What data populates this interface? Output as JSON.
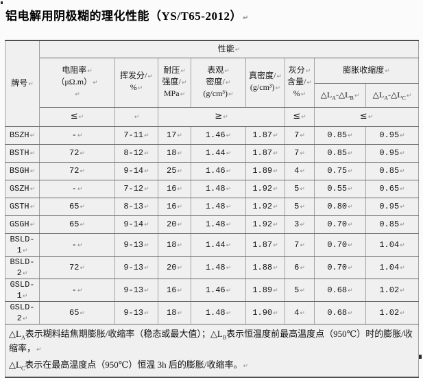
{
  "mark": "↵",
  "title": "铝电解用阴极糊的理化性能（YS/T65-2012）",
  "table": {
    "corner_header": "牌号",
    "perf_header": "性能",
    "expansion_header": "膨胀收缩度",
    "columns": [
      {
        "id": "resistivity",
        "lines": [
          "电阻率",
          "（μΩ.m）",
          ""
        ]
      },
      {
        "id": "volatile",
        "lines": [
          "挥发分/",
          "%"
        ]
      },
      {
        "id": "strength",
        "lines": [
          "耐压",
          "强度/",
          "MPa"
        ]
      },
      {
        "id": "apparent-density",
        "lines": [
          "表观",
          "密度/",
          "(g/cm³)"
        ]
      },
      {
        "id": "true-density",
        "lines": [
          "真密度/",
          "(g/cm³)"
        ]
      },
      {
        "id": "ash",
        "lines": [
          "灰分",
          "含量/",
          "%"
        ]
      }
    ],
    "delta_columns": [
      {
        "id": "dla-dlb",
        "segments": [
          {
            "t": "△L"
          },
          {
            "t": "A",
            "sub": true
          },
          {
            "t": "-△L"
          },
          {
            "t": "B",
            "sub": true
          }
        ]
      },
      {
        "id": "dla-dlc",
        "segments": [
          {
            "t": "△L"
          },
          {
            "t": "A",
            "sub": true
          },
          {
            "t": "-△L"
          },
          {
            "t": "C",
            "sub": true
          }
        ]
      }
    ],
    "limits": {
      "resistivity": "≤",
      "volatile": "",
      "mid": "≥",
      "ash": "≤",
      "expansion": "≤"
    },
    "rows": [
      [
        "BSZH",
        "-",
        "7-11",
        "17",
        "1.46",
        "1.87",
        "7",
        "0.85",
        "0.95"
      ],
      [
        "BSTH",
        "72",
        "8-12",
        "18",
        "1.44",
        "1.87",
        "7",
        "0.85",
        "0.95"
      ],
      [
        "BSGH",
        "72",
        "9-14",
        "25",
        "1.46",
        "1.89",
        "4",
        "0.75",
        "0.85"
      ],
      [
        "GSZH",
        "-",
        "7-12",
        "16",
        "1.48",
        "1.92",
        "5",
        "0.55",
        "0.65"
      ],
      [
        "GSTH",
        "65",
        "8-13",
        "16",
        "1.48",
        "1.92",
        "5",
        "0.80",
        "0.95"
      ],
      [
        "GSGH",
        "65",
        "9-14",
        "20",
        "1.48",
        "1.92",
        "3",
        "0.70",
        "0.85"
      ],
      [
        "BSLD-1",
        "-",
        "9-13",
        "18",
        "1.44",
        "1.87",
        "7",
        "0.70",
        "1.04"
      ],
      [
        "BSLD-2",
        "72",
        "9-13",
        "20",
        "1.48",
        "1.88",
        "6",
        "0.70",
        "1.04"
      ],
      [
        "GSLD-1",
        "-",
        "9-13",
        "16",
        "1.46",
        "1.89",
        "5",
        "0.68",
        "1.02"
      ],
      [
        "GSLD-2",
        "65",
        "9-13",
        "18",
        "1.48",
        "1.90",
        "4",
        "0.68",
        "1.02"
      ]
    ],
    "footnotes": [
      {
        "segments": [
          {
            "t": "△L"
          },
          {
            "t": "A",
            "sub": true
          },
          {
            "t": "表示糊料结焦期膨胀/收缩率（稳态或最大值）；"
          },
          {
            "t": "△L"
          },
          {
            "t": "B",
            "sub": true
          },
          {
            "t": "表示恒温度前最高温度点（950℃）时的膨胀/收缩率，"
          }
        ]
      },
      {
        "segments": [
          {
            "t": "△L"
          },
          {
            "t": "C",
            "sub": true
          },
          {
            "t": "表示在最高温度点（950℃）恒温 3h 后的膨胀/收缩率。"
          }
        ]
      }
    ]
  }
}
